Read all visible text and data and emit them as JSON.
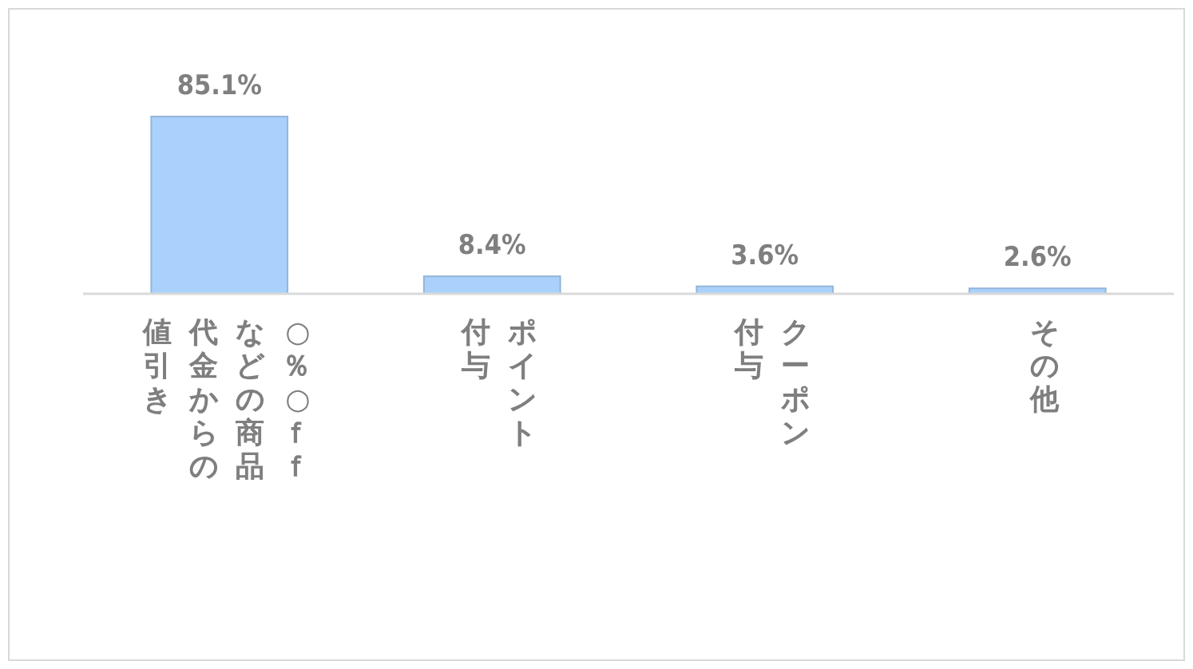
{
  "chart_data": {
    "type": "bar",
    "categories": [
      "○％○ｆｆなどの商品代金からの値引き",
      "ポイント付与",
      "クーポン付与",
      "その他"
    ],
    "values": [
      85.1,
      8.4,
      3.6,
      2.6
    ],
    "value_labels": [
      "85.1%",
      "8.4%",
      "3.6%",
      "2.6%"
    ],
    "color": "#a9d1fb"
  }
}
